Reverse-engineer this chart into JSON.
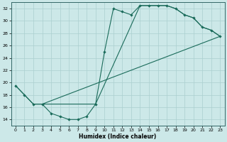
{
  "xlabel": "Humidex (Indice chaleur)",
  "bg_color": "#cce8e8",
  "line_color": "#1a6b5a",
  "grid_color": "#aacfcf",
  "xlim": [
    -0.5,
    23.5
  ],
  "ylim": [
    13.0,
    33.0
  ],
  "xticks": [
    0,
    1,
    2,
    3,
    4,
    5,
    6,
    7,
    8,
    9,
    10,
    11,
    12,
    13,
    14,
    15,
    16,
    17,
    18,
    19,
    20,
    21,
    22,
    23
  ],
  "yticks": [
    14,
    16,
    18,
    20,
    22,
    24,
    26,
    28,
    30,
    32
  ],
  "curve1_x": [
    0,
    1,
    2,
    3,
    4,
    5,
    6,
    7,
    8,
    9,
    10,
    11,
    12,
    13,
    14,
    15,
    16,
    17,
    18,
    19,
    20,
    21,
    22,
    23
  ],
  "curve1_y": [
    19.5,
    18.0,
    16.5,
    16.5,
    15.0,
    14.5,
    14.0,
    14.0,
    14.5,
    16.5,
    25.0,
    32.0,
    31.5,
    31.0,
    32.5,
    32.5,
    32.5,
    32.5,
    32.0,
    31.0,
    30.5,
    29.0,
    28.5,
    27.5
  ],
  "curve2_x": [
    0,
    1,
    2,
    3,
    23
  ],
  "curve2_y": [
    19.5,
    18.0,
    16.5,
    16.5,
    27.5
  ],
  "curve3_x": [
    3,
    9,
    14,
    15,
    16,
    17,
    18,
    19,
    20,
    21,
    22,
    23
  ],
  "curve3_y": [
    16.5,
    16.5,
    32.5,
    32.5,
    32.5,
    32.5,
    32.0,
    31.0,
    30.5,
    29.0,
    28.5,
    27.5
  ]
}
